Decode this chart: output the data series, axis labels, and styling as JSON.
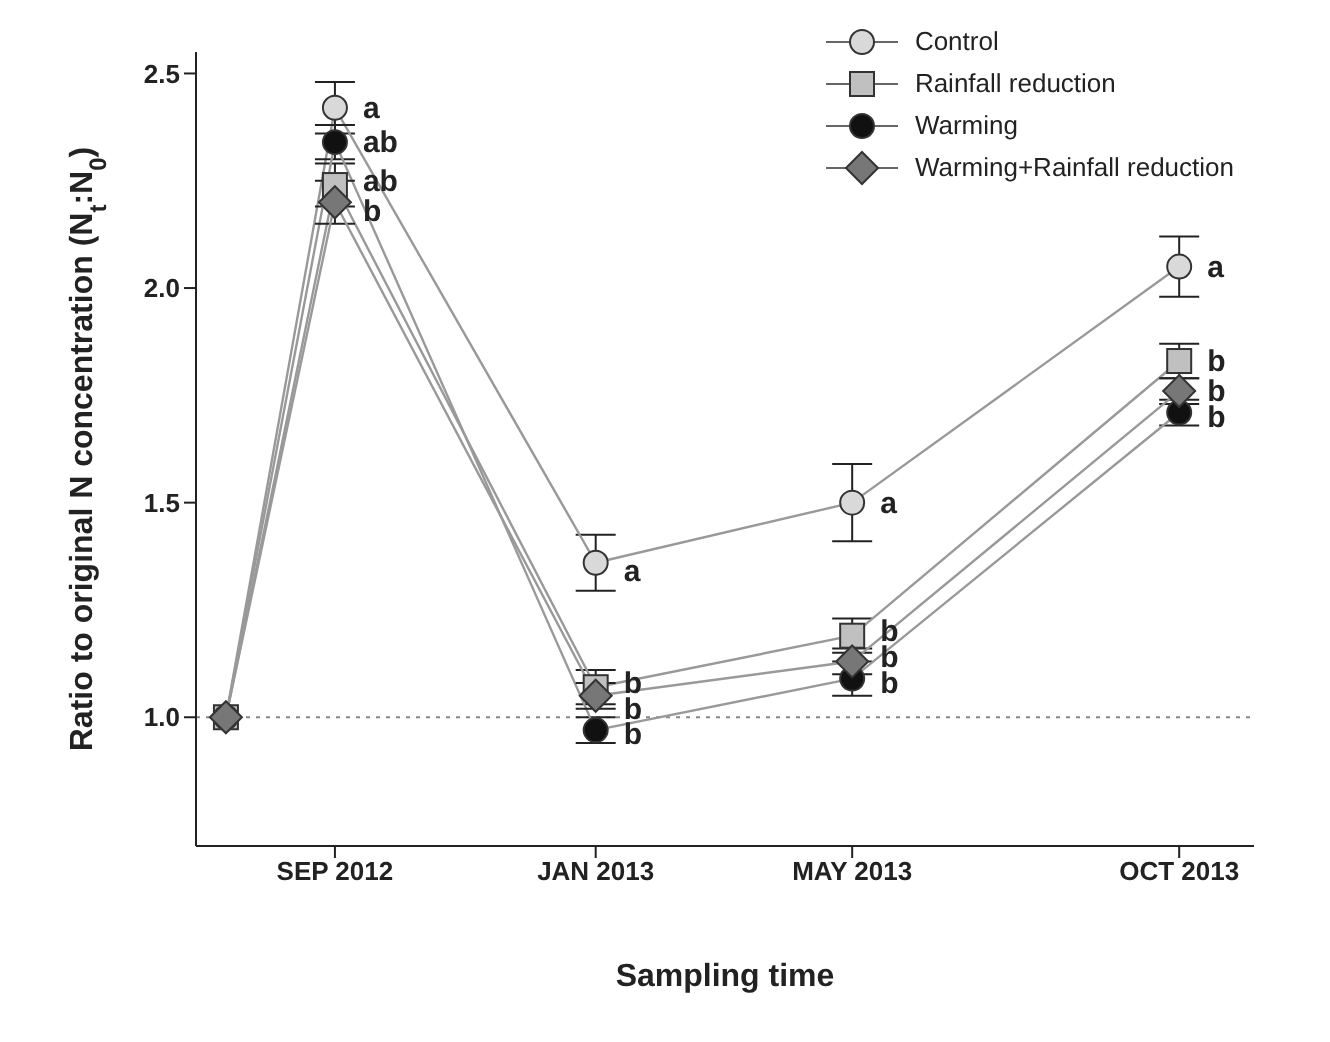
{
  "chart_data": {
    "type": "line",
    "xlabel": "Sampling time",
    "ylabel": "Ratio to original N concentration (N$_{t}$:N$_{0}$)",
    "x": [
      "2012-07-12",
      "2012-09-01",
      "2013-01-01",
      "2013-05-01",
      "2013-10-01"
    ],
    "xlim": [
      "2012-06-28",
      "2013-11-05"
    ],
    "xticks": [
      {
        "value": "2012-09-01",
        "label": "SEP 2012"
      },
      {
        "value": "2013-01-01",
        "label": "JAN 2013"
      },
      {
        "value": "2013-05-01",
        "label": "MAY 2013"
      },
      {
        "value": "2013-10-01",
        "label": "OCT 2013"
      }
    ],
    "ylim": [
      0.7,
      2.55
    ],
    "yticks": [
      {
        "value": 1,
        "label": "1.0"
      },
      {
        "value": 1.5,
        "label": "1.5"
      },
      {
        "value": 2,
        "label": "2.0"
      },
      {
        "value": 2.5,
        "label": "2.5"
      }
    ],
    "series": [
      {
        "name": "Control",
        "color": "#d9d9d9",
        "marker": "circle",
        "values": [
          1.0,
          2.42,
          1.36,
          1.5,
          2.05
        ],
        "errors": [
          null,
          0.06,
          0.065,
          0.09,
          0.07
        ]
      },
      {
        "name": "Rainfall reduction",
        "color": "#c0c0c0",
        "marker": "square",
        "values": [
          1.0,
          2.24,
          1.07,
          1.19,
          1.83
        ],
        "errors": [
          null,
          0.05,
          0.04,
          0.04,
          0.04
        ]
      },
      {
        "name": "Warming",
        "color": "#111111",
        "marker": "circle",
        "values": [
          1.0,
          2.34,
          0.97,
          1.09,
          1.71
        ],
        "errors": [
          null,
          0.04,
          0.03,
          0.04,
          0.03
        ]
      },
      {
        "name": "Warming+Rainfall reduction",
        "color": "#777777",
        "marker": "diamond",
        "values": [
          1.0,
          2.2,
          1.05,
          1.13,
          1.76
        ],
        "errors": [
          null,
          0.05,
          0.03,
          0.03,
          0.03
        ]
      }
    ],
    "ref_lines": [
      {
        "axis": "y",
        "value": 1.0,
        "line_style": "dotted",
        "color": "#888888"
      }
    ],
    "annotations": [
      {
        "text": "a",
        "x": "2012-09-01",
        "y": 2.42
      },
      {
        "text": "ab",
        "x": "2012-09-01",
        "y": 2.34
      },
      {
        "text": "ab",
        "x": "2012-09-01",
        "y": 2.25
      },
      {
        "text": "b",
        "x": "2012-09-01",
        "y": 2.18
      },
      {
        "text": "a",
        "x": "2013-01-01",
        "y": 1.34
      },
      {
        "text": "b",
        "x": "2013-01-01",
        "y": 1.08
      },
      {
        "text": "b",
        "x": "2013-01-01",
        "y": 1.02
      },
      {
        "text": "b",
        "x": "2013-01-01",
        "y": 0.96
      },
      {
        "text": "a",
        "x": "2013-05-01",
        "y": 1.5
      },
      {
        "text": "b",
        "x": "2013-05-01",
        "y": 1.2
      },
      {
        "text": "b",
        "x": "2013-05-01",
        "y": 1.14
      },
      {
        "text": "b",
        "x": "2013-05-01",
        "y": 1.08
      },
      {
        "text": "a",
        "x": "2013-10-01",
        "y": 2.05
      },
      {
        "text": "b",
        "x": "2013-10-01",
        "y": 1.83
      },
      {
        "text": "b",
        "x": "2013-10-01",
        "y": 1.76
      },
      {
        "text": "b",
        "x": "2013-10-01",
        "y": 1.7
      }
    ],
    "legend": "top right",
    "grid": false,
    "line_style": "solid"
  }
}
